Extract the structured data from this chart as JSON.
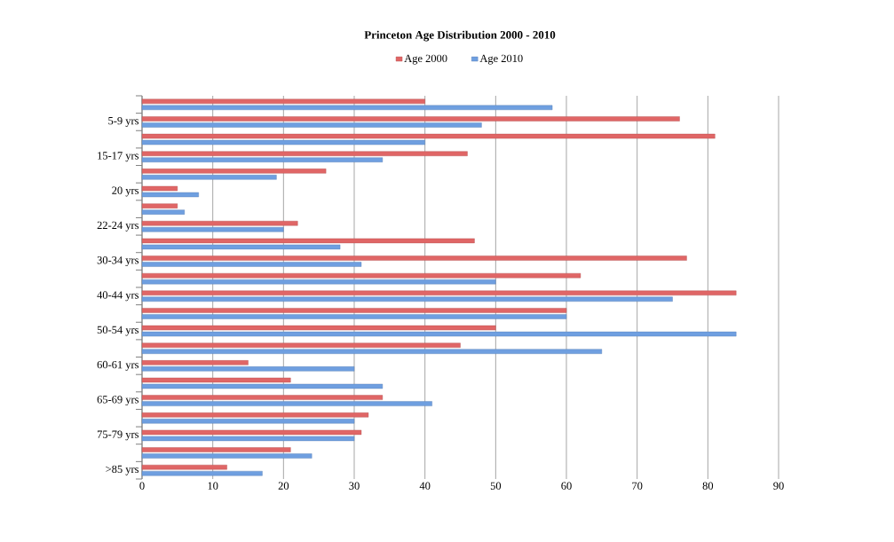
{
  "chart_data": {
    "type": "bar",
    "orientation": "horizontal",
    "title": "Princeton Age Distribution 2000 - 2010",
    "categories": [
      null,
      "5-9 yrs",
      null,
      "15-17 yrs",
      null,
      "20 yrs",
      null,
      "22-24 yrs",
      null,
      "30-34 yrs",
      null,
      "40-44 yrs",
      null,
      "50-54 yrs",
      null,
      "60-61 yrs",
      null,
      "65-69 yrs",
      null,
      "75-79 yrs",
      null,
      ">85 yrs"
    ],
    "series": [
      {
        "name": "Age 2000",
        "color": "#e06666",
        "values": [
          40,
          76,
          81,
          46,
          26,
          5,
          5,
          22,
          47,
          77,
          62,
          84,
          60,
          50,
          45,
          15,
          21,
          34,
          32,
          31,
          21,
          12
        ]
      },
      {
        "name": "Age 2010",
        "color": "#6f9fe0",
        "values": [
          58,
          48,
          40,
          34,
          19,
          8,
          6,
          20,
          28,
          31,
          50,
          75,
          60,
          84,
          65,
          30,
          34,
          41,
          30,
          30,
          24,
          17
        ]
      }
    ],
    "xlim": [
      0,
      90
    ],
    "xticks": [
      0,
      10,
      20,
      30,
      40,
      50,
      60,
      70,
      80,
      90
    ],
    "grid": "x",
    "legend": "top"
  }
}
